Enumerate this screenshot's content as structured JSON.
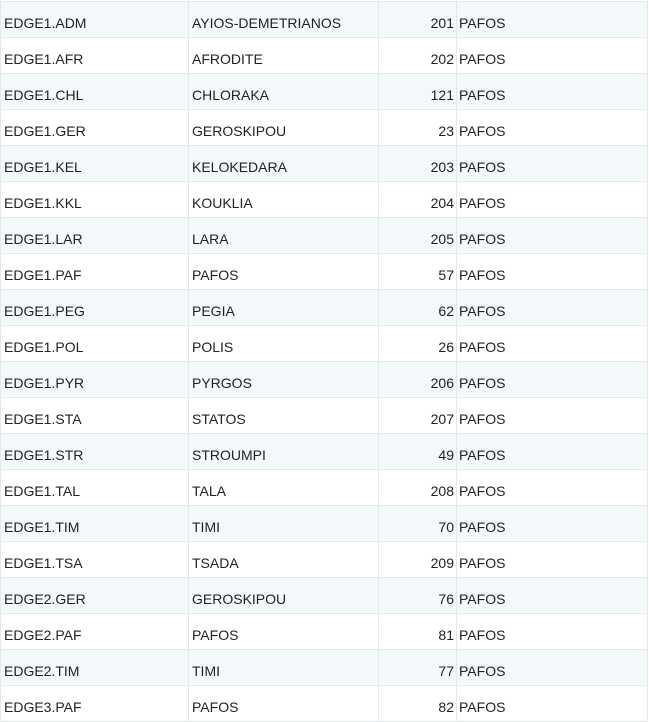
{
  "rows": [
    {
      "code": "EDGE1.ADM",
      "name": "AYIOS-DEMETRIANOS",
      "num": "201",
      "region": "PAFOS"
    },
    {
      "code": "EDGE1.AFR",
      "name": "AFRODITE",
      "num": "202",
      "region": "PAFOS"
    },
    {
      "code": "EDGE1.CHL",
      "name": "CHLORAKA",
      "num": "121",
      "region": "PAFOS"
    },
    {
      "code": "EDGE1.GER",
      "name": "GEROSKIPOU",
      "num": "23",
      "region": "PAFOS"
    },
    {
      "code": "EDGE1.KEL",
      "name": "KELOKEDARA",
      "num": "203",
      "region": "PAFOS"
    },
    {
      "code": "EDGE1.KKL",
      "name": "KOUKLIA",
      "num": "204",
      "region": "PAFOS"
    },
    {
      "code": "EDGE1.LAR",
      "name": "LARA",
      "num": "205",
      "region": "PAFOS"
    },
    {
      "code": "EDGE1.PAF",
      "name": "PAFOS",
      "num": "57",
      "region": "PAFOS"
    },
    {
      "code": "EDGE1.PEG",
      "name": "PEGIA",
      "num": "62",
      "region": "PAFOS"
    },
    {
      "code": "EDGE1.POL",
      "name": "POLIS",
      "num": "26",
      "region": "PAFOS"
    },
    {
      "code": "EDGE1.PYR",
      "name": "PYRGOS",
      "num": "206",
      "region": "PAFOS"
    },
    {
      "code": "EDGE1.STA",
      "name": "STATOS",
      "num": "207",
      "region": "PAFOS"
    },
    {
      "code": "EDGE1.STR",
      "name": "STROUMPI",
      "num": "49",
      "region": "PAFOS"
    },
    {
      "code": "EDGE1.TAL",
      "name": "TALA",
      "num": "208",
      "region": "PAFOS"
    },
    {
      "code": "EDGE1.TIM",
      "name": "TIMI",
      "num": "70",
      "region": "PAFOS"
    },
    {
      "code": "EDGE1.TSA",
      "name": "TSADA",
      "num": "209",
      "region": "PAFOS"
    },
    {
      "code": "EDGE2.GER",
      "name": "GEROSKIPOU",
      "num": "76",
      "region": "PAFOS"
    },
    {
      "code": "EDGE2.PAF",
      "name": "PAFOS",
      "num": "81",
      "region": "PAFOS"
    },
    {
      "code": "EDGE2.TIM",
      "name": "TIMI",
      "num": "77",
      "region": "PAFOS"
    },
    {
      "code": "EDGE3.PAF",
      "name": "PAFOS",
      "num": "82",
      "region": "PAFOS"
    }
  ]
}
